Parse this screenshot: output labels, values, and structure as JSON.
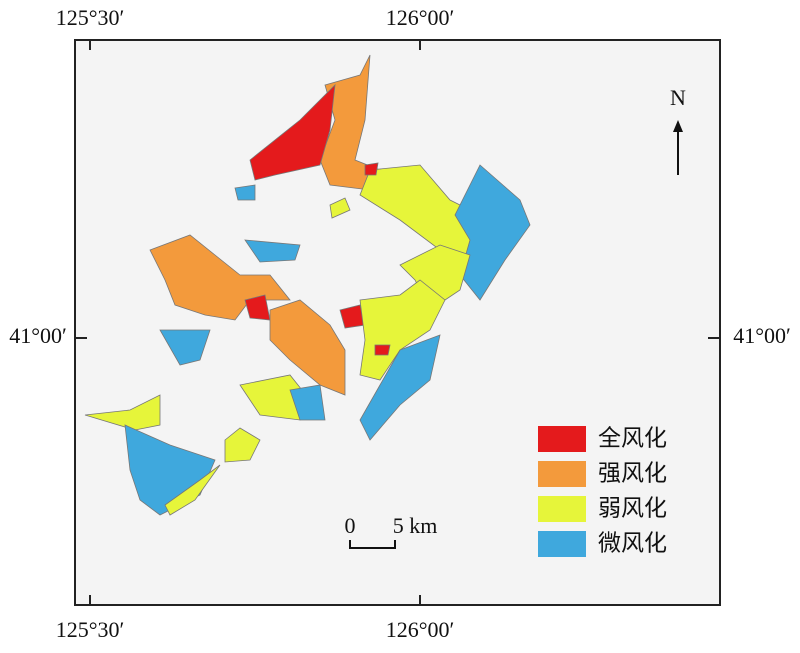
{
  "map": {
    "top_labels": [
      "125°30′",
      "126°00′"
    ],
    "bottom_labels": [
      "125°30′",
      "126°00′"
    ],
    "left_label": "41°00′",
    "right_label": "41°00′",
    "north": "N",
    "scale": {
      "start": "0",
      "end": "5 km"
    },
    "legend": [
      {
        "label": "全风化"
      },
      {
        "label": "强风化"
      },
      {
        "label": "弱风化"
      },
      {
        "label": "微风化"
      }
    ]
  }
}
